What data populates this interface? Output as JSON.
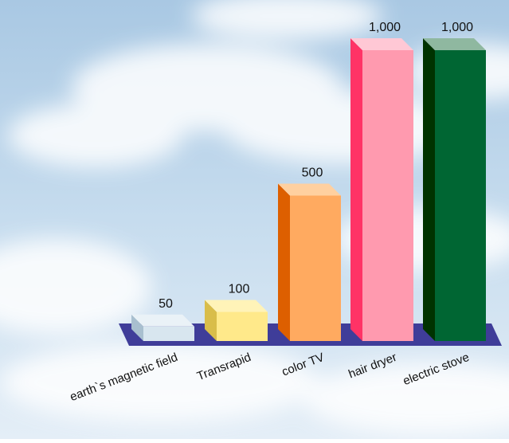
{
  "chart_data": {
    "type": "bar",
    "categories": [
      "earth`s magnetic field",
      "Transrapid",
      "color TV",
      "hair dryer",
      "electric stove"
    ],
    "values": [
      50,
      100,
      500,
      1000,
      1000
    ],
    "value_labels": [
      "50",
      "100",
      "500",
      "1,000",
      "1,000"
    ],
    "title": "",
    "xlabel": "",
    "ylabel": "",
    "ylim": [
      0,
      1000
    ],
    "grid": false,
    "legend": "none",
    "style": "3d-bars-on-sky-background",
    "colors": {
      "bar_fronts": [
        "#d8e6ef",
        "#ffe98a",
        "#ffaa60",
        "#ff9aaf",
        "#006633"
      ],
      "bar_sides": [
        "#a8bfcf",
        "#d9bd4a",
        "#dd5f00",
        "#ff3366",
        "#003300"
      ],
      "bar_tops": [
        "#eaf2f7",
        "#fff3b8",
        "#ffd0a0",
        "#ffc8d5",
        "#8fb8a0"
      ],
      "floor": "#3f3d99"
    }
  }
}
